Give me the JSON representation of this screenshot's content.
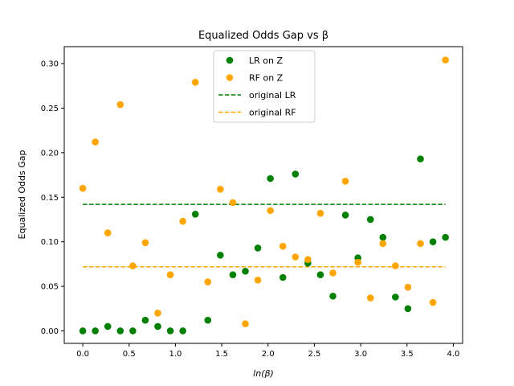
{
  "chart_data": {
    "type": "scatter",
    "title": "Equalized Odds Gap vs β",
    "xlabel": "ln(β)",
    "ylabel": "Equalized Odds Gap",
    "xlim": [
      -0.2,
      4.1
    ],
    "ylim": [
      -0.014,
      0.319
    ],
    "xticks": [
      "0.0",
      "0.5",
      "1.0",
      "1.5",
      "2.0",
      "2.5",
      "3.0",
      "3.5",
      "4.0"
    ],
    "xtick_values": [
      0.0,
      0.5,
      1.0,
      1.5,
      2.0,
      2.5,
      3.0,
      3.5,
      4.0
    ],
    "yticks": [
      "0.00",
      "0.05",
      "0.10",
      "0.15",
      "0.20",
      "0.25",
      "0.30"
    ],
    "ytick_values": [
      0.0,
      0.05,
      0.1,
      0.15,
      0.2,
      0.25,
      0.3
    ],
    "grid": false,
    "legend_position": "top-center",
    "series": [
      {
        "name": "LR on Z",
        "kind": "scatter",
        "color": "#008000",
        "x": [
          0.0,
          0.135,
          0.27,
          0.405,
          0.54,
          0.675,
          0.81,
          0.945,
          1.08,
          1.215,
          1.35,
          1.485,
          1.62,
          1.755,
          1.89,
          2.025,
          2.16,
          2.295,
          2.43,
          2.565,
          2.7,
          2.835,
          2.97,
          3.105,
          3.24,
          3.375,
          3.51,
          3.645,
          3.78,
          3.915
        ],
        "y": [
          0.0,
          0.0,
          0.005,
          0.0,
          0.0,
          0.012,
          0.005,
          0.0,
          0.0,
          0.131,
          0.012,
          0.085,
          0.063,
          0.067,
          0.093,
          0.171,
          0.06,
          0.176,
          0.076,
          0.063,
          0.039,
          0.13,
          0.082,
          0.125,
          0.105,
          0.038,
          0.025,
          0.193,
          0.1,
          0.105
        ]
      },
      {
        "name": "RF on Z",
        "kind": "scatter",
        "color": "#FFA500",
        "x": [
          0.0,
          0.135,
          0.27,
          0.405,
          0.54,
          0.675,
          0.81,
          0.945,
          1.08,
          1.215,
          1.35,
          1.485,
          1.62,
          1.755,
          1.89,
          2.025,
          2.16,
          2.295,
          2.43,
          2.565,
          2.7,
          2.835,
          2.97,
          3.105,
          3.24,
          3.375,
          3.51,
          3.645,
          3.78,
          3.915
        ],
        "y": [
          0.16,
          0.212,
          0.11,
          0.254,
          0.073,
          0.099,
          0.02,
          0.063,
          0.123,
          0.279,
          0.055,
          0.159,
          0.144,
          0.008,
          0.057,
          0.135,
          0.095,
          0.083,
          0.08,
          0.132,
          0.065,
          0.168,
          0.077,
          0.037,
          0.098,
          0.073,
          0.049,
          0.098,
          0.032,
          0.304
        ]
      },
      {
        "name": "original LR",
        "kind": "hline",
        "color": "#008000",
        "y": 0.142,
        "x_range": [
          0.0,
          3.915
        ]
      },
      {
        "name": "original RF",
        "kind": "hline",
        "color": "#FFA500",
        "y": 0.072,
        "x_range": [
          0.0,
          3.915
        ]
      }
    ]
  }
}
